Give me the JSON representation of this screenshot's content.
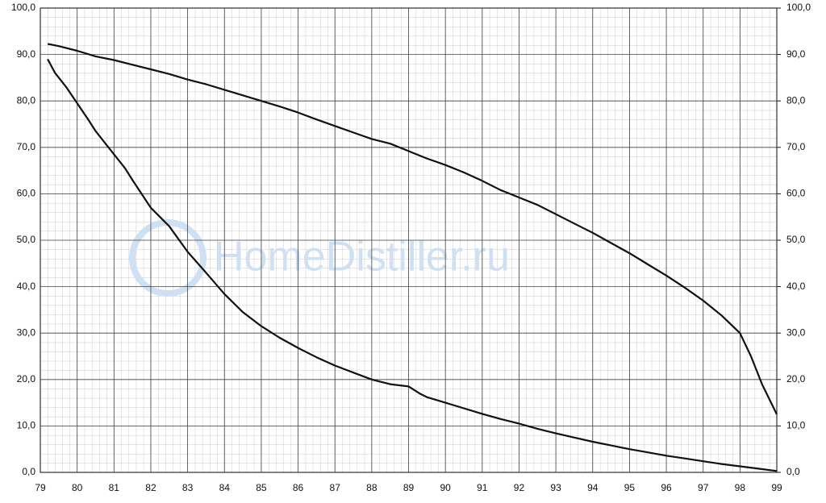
{
  "chart_data": {
    "type": "line",
    "watermark": "HomeDistiller.ru",
    "xlim": [
      79,
      99
    ],
    "xticks": [
      79,
      80,
      81,
      82,
      83,
      84,
      85,
      86,
      87,
      88,
      89,
      90,
      91,
      92,
      93,
      94,
      95,
      96,
      97,
      98,
      99
    ],
    "ylim": [
      0,
      100
    ],
    "yticks": [
      {
        "value": 0,
        "label": "0,0"
      },
      {
        "value": 10,
        "label": "10,0"
      },
      {
        "value": 20,
        "label": "20,0"
      },
      {
        "value": 30,
        "label": "30,0"
      },
      {
        "value": 40,
        "label": "40,0"
      },
      {
        "value": 50,
        "label": "50,0"
      },
      {
        "value": 60,
        "label": "60,0"
      },
      {
        "value": 70,
        "label": "70,0"
      },
      {
        "value": 80,
        "label": "80,0"
      },
      {
        "value": 90,
        "label": "90,0"
      },
      {
        "value": 100,
        "label": "100,0"
      }
    ],
    "y2lim": [
      0,
      100
    ],
    "y2ticks": [
      {
        "value": 0,
        "label": "0,0"
      },
      {
        "value": 10,
        "label": "10,0"
      },
      {
        "value": 20,
        "label": "20,0"
      },
      {
        "value": 30,
        "label": "30,0"
      },
      {
        "value": 40,
        "label": "40,0"
      },
      {
        "value": 50,
        "label": "50,0"
      },
      {
        "value": 60,
        "label": "60,0"
      },
      {
        "value": 70,
        "label": "70,0"
      },
      {
        "value": 80,
        "label": "80,0"
      },
      {
        "value": 90,
        "label": "90,0"
      },
      {
        "value": 100,
        "label": "100,0"
      }
    ],
    "grid": true,
    "series": [
      {
        "color": "#111111",
        "x": [
          79.2,
          79.5,
          80,
          80.5,
          81,
          81.5,
          82,
          82.5,
          83,
          83.5,
          84,
          84.5,
          85,
          85.5,
          86,
          86.5,
          87,
          87.5,
          88,
          88.5,
          89,
          89.5,
          90,
          90.5,
          91,
          91.5,
          92,
          92.5,
          93,
          93.5,
          94,
          94.5,
          95,
          95.5,
          96,
          96.5,
          97,
          97.5,
          98,
          98.3,
          98.6,
          99
        ],
        "values": [
          92.3,
          91.8,
          90.8,
          89.6,
          88.8,
          87.8,
          86.8,
          85.8,
          84.6,
          83.6,
          82.4,
          81.2,
          80,
          78.8,
          77.5,
          76,
          74.6,
          73.2,
          71.8,
          70.8,
          69.2,
          67.6,
          66.2,
          64.6,
          62.8,
          60.8,
          59.2,
          57.6,
          55.6,
          53.6,
          51.6,
          49.4,
          47.2,
          44.8,
          42.4,
          39.8,
          37,
          33.8,
          30,
          25,
          19,
          12.5
        ]
      },
      {
        "color": "#111111",
        "x": [
          79.2,
          79.4,
          79.7,
          80,
          80.3,
          80.5,
          81,
          81.3,
          81.5,
          82,
          82.5,
          83,
          83.5,
          84,
          84.5,
          85,
          85.5,
          86,
          86.5,
          87,
          87.5,
          88,
          88.5,
          89,
          89.3,
          89.5,
          90,
          90.5,
          91,
          91.5,
          92,
          92.5,
          93,
          93.5,
          94,
          94.5,
          95,
          95.5,
          96,
          96.5,
          97,
          97.5,
          98,
          98.5,
          99
        ],
        "values": [
          89,
          86,
          83,
          79.5,
          76,
          73.5,
          68.5,
          65.5,
          63,
          57,
          53,
          47.5,
          43,
          38.4,
          34.5,
          31.5,
          29,
          26.8,
          24.8,
          23,
          21.5,
          20,
          19,
          18.5,
          17,
          16.2,
          15,
          13.8,
          12.6,
          11.5,
          10.5,
          9.4,
          8.4,
          7.5,
          6.6,
          5.8,
          5,
          4.3,
          3.6,
          3,
          2.4,
          1.8,
          1.3,
          0.8,
          0.3
        ]
      }
    ]
  }
}
